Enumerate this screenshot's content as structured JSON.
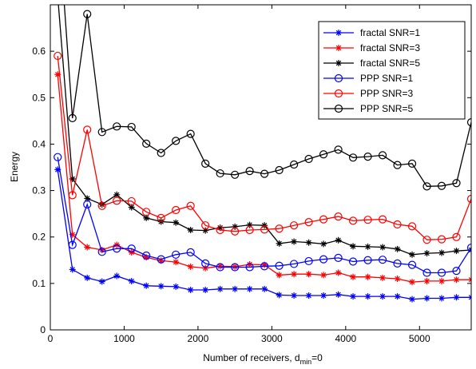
{
  "chart_data": {
    "type": "line",
    "xlabel": "Number of receivers, d",
    "xlabel_sub": "min",
    "xlabel_suffix": "=0",
    "ylabel": "Energy",
    "xlim": [
      0,
      5700
    ],
    "ylim": [
      0,
      0.7
    ],
    "xticks": [
      0,
      1000,
      2000,
      3000,
      4000,
      5000
    ],
    "xtick_labels": [
      "0",
      "1000",
      "2000",
      "3000",
      "4000",
      "5000"
    ],
    "yticks": [
      0,
      0.1,
      0.2,
      0.3,
      0.4,
      0.5,
      0.6
    ],
    "ytick_labels": [
      "0",
      "0.1",
      "0.2",
      "0.3",
      "0.4",
      "0.5",
      "0.6"
    ],
    "grid": false,
    "legend_position": "top-right",
    "x": [
      100,
      300,
      500,
      700,
      900,
      1100,
      1300,
      1500,
      1700,
      1900,
      2100,
      2300,
      2500,
      2700,
      2900,
      3100,
      3300,
      3500,
      3700,
      3900,
      4100,
      4300,
      4500,
      4700,
      4900,
      5100,
      5300,
      5500,
      5700
    ],
    "series": [
      {
        "name": "fractal SNR=1",
        "color": "#0000ff",
        "marker": "star",
        "values": [
          0.345,
          0.13,
          0.112,
          0.104,
          0.116,
          0.105,
          0.095,
          0.094,
          0.093,
          0.086,
          0.086,
          0.088,
          0.088,
          0.088,
          0.088,
          0.075,
          0.074,
          0.074,
          0.074,
          0.076,
          0.072,
          0.072,
          0.072,
          0.072,
          0.066,
          0.068,
          0.068,
          0.07,
          0.07
        ]
      },
      {
        "name": "fractal SNR=3",
        "color": "#ff0000",
        "marker": "star",
        "values": [
          0.55,
          0.205,
          0.178,
          0.172,
          0.183,
          0.167,
          0.156,
          0.149,
          0.146,
          0.136,
          0.133,
          0.137,
          0.136,
          0.141,
          0.14,
          0.118,
          0.12,
          0.12,
          0.118,
          0.123,
          0.114,
          0.114,
          0.112,
          0.11,
          0.103,
          0.105,
          0.105,
          0.108,
          0.108
        ]
      },
      {
        "name": "fractal SNR=5",
        "color": "#000000",
        "marker": "star",
        "values": [
          0.72,
          0.325,
          0.283,
          0.27,
          0.291,
          0.264,
          0.241,
          0.233,
          0.231,
          0.215,
          0.214,
          0.22,
          0.222,
          0.226,
          0.225,
          0.186,
          0.19,
          0.188,
          0.185,
          0.193,
          0.18,
          0.179,
          0.178,
          0.174,
          0.162,
          0.165,
          0.166,
          0.17,
          0.172
        ]
      },
      {
        "name": "PPP SNR=1",
        "color": "#0000ff",
        "marker": "circle",
        "values": [
          0.372,
          0.183,
          0.27,
          0.168,
          0.175,
          0.175,
          0.16,
          0.152,
          0.162,
          0.167,
          0.143,
          0.135,
          0.135,
          0.135,
          0.137,
          0.138,
          0.142,
          0.148,
          0.152,
          0.155,
          0.147,
          0.15,
          0.151,
          0.143,
          0.14,
          0.123,
          0.123,
          0.127,
          0.177
        ]
      },
      {
        "name": "PPP SNR=3",
        "color": "#ff0000",
        "marker": "circle",
        "values": [
          0.59,
          0.29,
          0.431,
          0.267,
          0.278,
          0.277,
          0.254,
          0.241,
          0.258,
          0.267,
          0.225,
          0.215,
          0.212,
          0.215,
          0.216,
          0.218,
          0.225,
          0.232,
          0.238,
          0.244,
          0.235,
          0.237,
          0.238,
          0.227,
          0.223,
          0.194,
          0.195,
          0.2,
          0.282
        ]
      },
      {
        "name": "PPP SNR=5",
        "color": "#000000",
        "marker": "circle",
        "values": [
          0.9,
          0.456,
          0.68,
          0.426,
          0.438,
          0.437,
          0.401,
          0.381,
          0.407,
          0.422,
          0.358,
          0.337,
          0.334,
          0.342,
          0.336,
          0.344,
          0.356,
          0.368,
          0.378,
          0.388,
          0.371,
          0.373,
          0.376,
          0.355,
          0.358,
          0.309,
          0.31,
          0.316,
          0.447
        ]
      }
    ]
  }
}
